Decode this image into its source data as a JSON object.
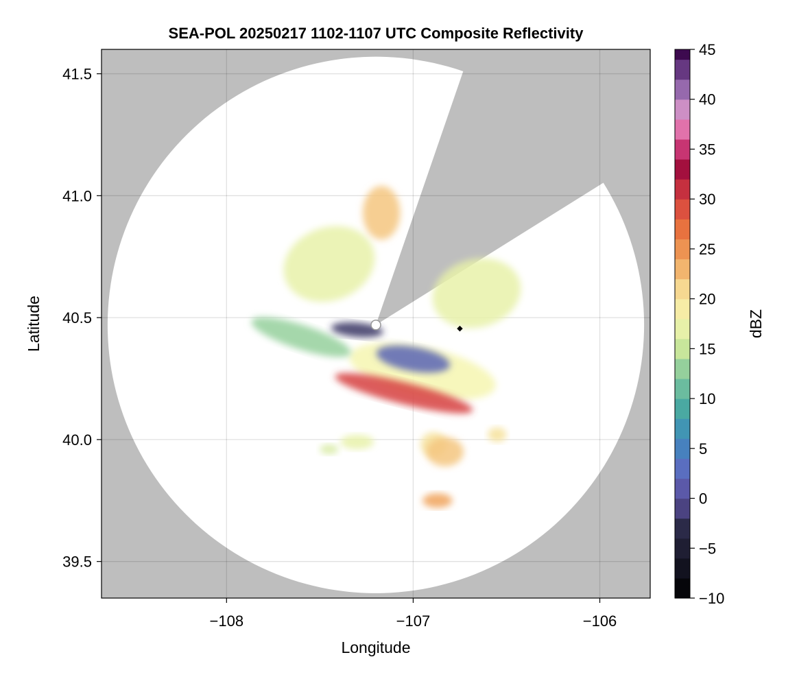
{
  "chart_data": {
    "type": "heatmap",
    "title": "SEA-POL 20250217 1102-1107 UTC Composite Reflectivity",
    "xlabel": "Longitude",
    "ylabel": "Latitude",
    "xlim": [
      -108.67,
      -105.73
    ],
    "ylim": [
      39.35,
      41.6
    ],
    "xticks": [
      -108,
      -107,
      -106
    ],
    "xtick_labels": [
      "−108",
      "−107",
      "−106"
    ],
    "yticks": [
      39.5,
      40.0,
      40.5,
      41.0,
      41.5
    ],
    "ytick_labels": [
      "39.5",
      "40.0",
      "40.5",
      "41.0",
      "41.5"
    ],
    "grid": true,
    "background_color": "#bebebe",
    "coverage_color": "#ffffff",
    "radar": {
      "lon": -107.2,
      "lat": 40.47,
      "range_lat_deg": 1.1,
      "blocked_sector_bearings_deg": [
        [
          19,
          58
        ]
      ]
    },
    "marker": {
      "lon": -106.75,
      "lat": 40.455,
      "shape": "diamond",
      "color": "#000000"
    },
    "colorbar": {
      "label": "dBZ",
      "min": -10,
      "max": 45,
      "step": 2,
      "ticks": [
        -10,
        -5,
        0,
        5,
        10,
        15,
        20,
        25,
        30,
        35,
        40,
        45
      ],
      "tick_labels": [
        "−10",
        "−5",
        "0",
        "5",
        "10",
        "15",
        "20",
        "25",
        "30",
        "35",
        "40",
        "45"
      ],
      "colormap_stops": [
        {
          "v": -10,
          "c": "#000000"
        },
        {
          "v": -3,
          "c": "#2b2a48"
        },
        {
          "v": 0,
          "c": "#5b4f9e"
        },
        {
          "v": 3,
          "c": "#5a6ec0"
        },
        {
          "v": 6,
          "c": "#3d8bbd"
        },
        {
          "v": 9,
          "c": "#4aa9a2"
        },
        {
          "v": 12,
          "c": "#7cc59d"
        },
        {
          "v": 15,
          "c": "#c8e69b"
        },
        {
          "v": 18,
          "c": "#f6f6b0"
        },
        {
          "v": 21,
          "c": "#f6d891"
        },
        {
          "v": 24,
          "c": "#f0a35c"
        },
        {
          "v": 27,
          "c": "#e8723f"
        },
        {
          "v": 30,
          "c": "#d6403f"
        },
        {
          "v": 33,
          "c": "#a3103e"
        },
        {
          "v": 36,
          "c": "#d9488c"
        },
        {
          "v": 38,
          "c": "#e99bca"
        },
        {
          "v": 40,
          "c": "#b182bf"
        },
        {
          "v": 42,
          "c": "#7a4f9a"
        },
        {
          "v": 45,
          "c": "#3d0a4f"
        }
      ]
    },
    "echo_regions": [
      {
        "name": "main-band",
        "lon": -106.95,
        "lat": 40.28,
        "rx": 0.4,
        "ry": 0.1,
        "rot": 12,
        "dbz": 18
      },
      {
        "name": "core-band",
        "lon": -107.05,
        "lat": 40.19,
        "rx": 0.38,
        "ry": 0.045,
        "rot": 14,
        "dbz": 30
      },
      {
        "name": "west-arm",
        "lon": -107.6,
        "lat": 40.42,
        "rx": 0.28,
        "ry": 0.05,
        "rot": 18,
        "dbz": 13
      },
      {
        "name": "low-echo-patch",
        "lon": -107.0,
        "lat": 40.33,
        "rx": 0.2,
        "ry": 0.05,
        "rot": 10,
        "dbz": 2
      },
      {
        "name": "near-radar-patch",
        "lon": -107.3,
        "lat": 40.45,
        "rx": 0.14,
        "ry": 0.03,
        "rot": 5,
        "dbz": -2
      },
      {
        "name": "nw-sector",
        "lon": -107.45,
        "lat": 40.72,
        "rx": 0.25,
        "ry": 0.15,
        "rot": -20,
        "dbz": 17
      },
      {
        "name": "north-cluster",
        "lon": -107.17,
        "lat": 40.93,
        "rx": 0.1,
        "ry": 0.11,
        "rot": 0,
        "dbz": 22
      },
      {
        "name": "northeast-sector",
        "lon": -106.66,
        "lat": 40.6,
        "rx": 0.24,
        "ry": 0.14,
        "rot": -15,
        "dbz": 17
      },
      {
        "name": "south-cell-1",
        "lon": -106.89,
        "lat": 39.98,
        "rx": 0.07,
        "ry": 0.05,
        "rot": 0,
        "dbz": 20
      },
      {
        "name": "south-cell-2",
        "lon": -106.83,
        "lat": 39.95,
        "rx": 0.1,
        "ry": 0.06,
        "rot": 0,
        "dbz": 22
      },
      {
        "name": "south-cell-3",
        "lon": -107.3,
        "lat": 39.99,
        "rx": 0.09,
        "ry": 0.03,
        "rot": 0,
        "dbz": 17
      },
      {
        "name": "south-cell-4",
        "lon": -106.87,
        "lat": 39.75,
        "rx": 0.08,
        "ry": 0.03,
        "rot": 0,
        "dbz": 24
      },
      {
        "name": "south-cell-5",
        "lon": -107.45,
        "lat": 39.96,
        "rx": 0.05,
        "ry": 0.02,
        "rot": 0,
        "dbz": 16
      },
      {
        "name": "south-cell-6",
        "lon": -106.55,
        "lat": 40.02,
        "rx": 0.05,
        "ry": 0.03,
        "rot": 0,
        "dbz": 20
      }
    ]
  }
}
